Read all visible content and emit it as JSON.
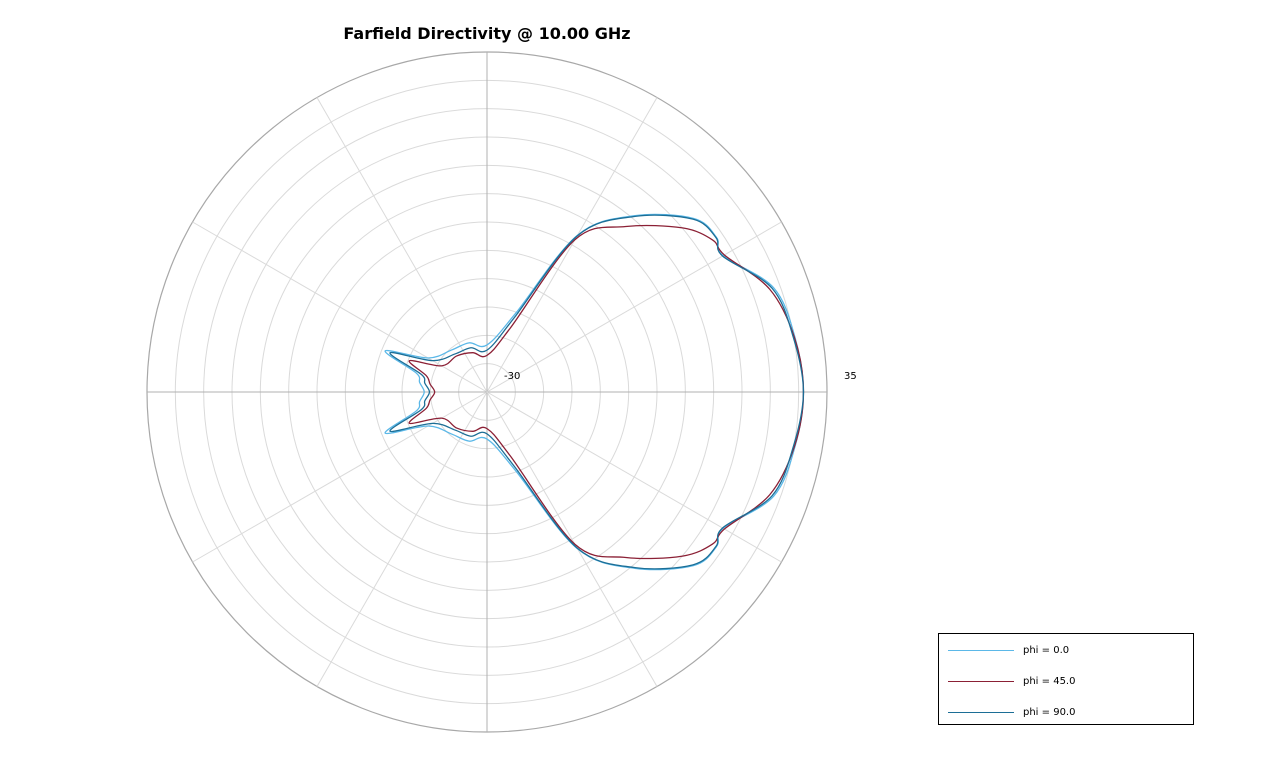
{
  "chart_data": {
    "type": "line",
    "title": "Farfield Directivity @ 10.00 GHz",
    "projection": "polar",
    "r_range": [
      -30,
      35
    ],
    "r_tick_labels": [
      "-30",
      "35"
    ],
    "grid": true,
    "legend_placement": "bottom-right",
    "series": [
      {
        "name": "phi = 0.0",
        "color": "#5bb8e8",
        "theta_deg": [
          0,
          10,
          20,
          30,
          34,
          40,
          50,
          60,
          70,
          90,
          110,
          130,
          150,
          158,
          165,
          172,
          180
        ],
        "values": [
          30.5,
          29.8,
          28.3,
          22.1,
          22.9,
          21.6,
          14.0,
          4.6,
          -14.0,
          -21.0,
          -20.0,
          -19.5,
          -17.0,
          -9.0,
          -16.0,
          -17.0,
          -18.0
        ]
      },
      {
        "name": "phi = 45.0",
        "color": "#8b2035",
        "theta_deg": [
          0,
          10,
          20,
          30,
          34,
          40,
          50,
          60,
          70,
          90,
          110,
          130,
          150,
          158,
          165,
          172,
          180
        ],
        "values": [
          30.5,
          29.7,
          27.5,
          22.4,
          22.0,
          18.8,
          11.3,
          3.6,
          -17.0,
          -23.0,
          -22.0,
          -21.0,
          -20.0,
          -14.0,
          -18.0,
          -19.0,
          -20.0
        ]
      },
      {
        "name": "phi = 90.0",
        "color": "#1c6e96",
        "theta_deg": [
          0,
          10,
          20,
          30,
          34,
          40,
          50,
          60,
          70,
          90,
          110,
          130,
          150,
          158,
          165,
          172,
          180
        ],
        "values": [
          30.5,
          29.5,
          28.0,
          22.0,
          22.8,
          21.4,
          13.8,
          4.4,
          -15.0,
          -22.0,
          -21.0,
          -20.5,
          -18.0,
          -10.0,
          -17.0,
          -18.0,
          -19.0
        ]
      }
    ]
  }
}
